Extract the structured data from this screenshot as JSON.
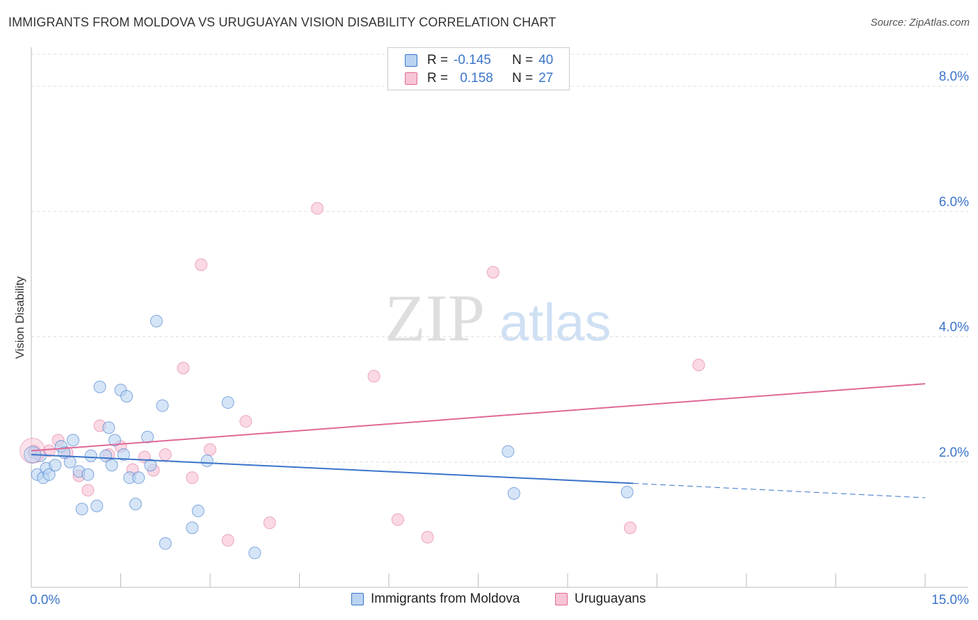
{
  "title": "IMMIGRANTS FROM MOLDOVA VS URUGUAYAN VISION DISABILITY CORRELATION CHART",
  "source": "Source: ZipAtlas.com",
  "watermark": {
    "zip": "ZIP",
    "atlas": "atlas"
  },
  "colors": {
    "blue": "#3b74c9",
    "blue_fill": "#b9d3f2",
    "pink": "#e06897",
    "pink_fill": "#f7c5d6",
    "grid": "#dddddd",
    "axis_label": "#3b74c9"
  },
  "legend": {
    "series1": {
      "r_label": "R =",
      "r_value": "-0.145",
      "n_label": "N =",
      "n_value": "40"
    },
    "series2": {
      "r_label": "R =",
      "r_value": "0.158",
      "n_label": "N =",
      "n_value": "27"
    }
  },
  "chart_data": {
    "type": "scatter",
    "title": "IMMIGRANTS FROM MOLDOVA VS URUGUAYAN VISION DISABILITY CORRELATION CHART",
    "xlabel": "",
    "ylabel": "Vision Disability",
    "xlim": [
      0,
      15
    ],
    "ylim": [
      0,
      8.6
    ],
    "x_tick_labels": [
      "0.0%",
      "15.0%"
    ],
    "y_ticks": [
      2,
      4,
      6,
      8
    ],
    "y_tick_labels": [
      "2.0%",
      "4.0%",
      "6.0%",
      "8.0%"
    ],
    "series": [
      {
        "name": "Immigrants from Moldova",
        "color": "#3b74c9",
        "points": [
          [
            0.05,
            2.15
          ],
          [
            0.1,
            1.8
          ],
          [
            0.2,
            1.75
          ],
          [
            0.25,
            1.9
          ],
          [
            0.3,
            1.8
          ],
          [
            0.4,
            1.95
          ],
          [
            0.5,
            2.25
          ],
          [
            0.55,
            2.15
          ],
          [
            0.65,
            2.0
          ],
          [
            0.7,
            2.35
          ],
          [
            0.8,
            1.85
          ],
          [
            0.85,
            1.25
          ],
          [
            0.95,
            1.8
          ],
          [
            1.0,
            2.1
          ],
          [
            1.1,
            1.3
          ],
          [
            1.15,
            3.2
          ],
          [
            1.25,
            2.1
          ],
          [
            1.3,
            2.55
          ],
          [
            1.35,
            1.95
          ],
          [
            1.4,
            2.35
          ],
          [
            1.5,
            3.15
          ],
          [
            1.55,
            2.12
          ],
          [
            1.6,
            3.05
          ],
          [
            1.65,
            1.75
          ],
          [
            1.75,
            1.33
          ],
          [
            1.8,
            1.75
          ],
          [
            1.95,
            2.4
          ],
          [
            2.0,
            1.95
          ],
          [
            2.1,
            4.25
          ],
          [
            2.2,
            2.9
          ],
          [
            2.25,
            0.7
          ],
          [
            2.7,
            0.95
          ],
          [
            2.8,
            1.22
          ],
          [
            2.95,
            2.02
          ],
          [
            3.3,
            2.95
          ],
          [
            3.75,
            0.55
          ],
          [
            8.0,
            2.17
          ],
          [
            8.1,
            1.5
          ],
          [
            10.0,
            1.52
          ],
          [
            0.15,
            2.1
          ]
        ],
        "trend": {
          "x": [
            0,
            10.1
          ],
          "y": [
            2.12,
            1.66
          ]
        },
        "trend_dashed": {
          "x": [
            10.1,
            15
          ],
          "y": [
            1.66,
            1.43
          ]
        }
      },
      {
        "name": "Uruguayans",
        "color": "#e06897",
        "points": [
          [
            0.05,
            2.18
          ],
          [
            0.3,
            2.18
          ],
          [
            0.45,
            2.35
          ],
          [
            0.6,
            2.15
          ],
          [
            0.8,
            1.78
          ],
          [
            0.95,
            1.55
          ],
          [
            1.15,
            2.58
          ],
          [
            1.3,
            2.12
          ],
          [
            1.5,
            2.25
          ],
          [
            1.7,
            1.88
          ],
          [
            1.9,
            2.08
          ],
          [
            2.05,
            1.87
          ],
          [
            2.25,
            2.12
          ],
          [
            2.55,
            3.5
          ],
          [
            2.7,
            1.75
          ],
          [
            2.85,
            5.15
          ],
          [
            3.0,
            2.2
          ],
          [
            3.3,
            0.75
          ],
          [
            3.6,
            2.65
          ],
          [
            4.0,
            1.03
          ],
          [
            4.8,
            6.05
          ],
          [
            5.75,
            3.37
          ],
          [
            6.15,
            1.08
          ],
          [
            6.65,
            0.8
          ],
          [
            7.75,
            5.03
          ],
          [
            10.05,
            0.95
          ],
          [
            11.2,
            3.55
          ]
        ],
        "trend": {
          "x": [
            0,
            15
          ],
          "y": [
            2.18,
            3.25
          ]
        }
      }
    ]
  },
  "bottom_legend": {
    "series1": "Immigrants from Moldova",
    "series2": "Uruguayans"
  }
}
